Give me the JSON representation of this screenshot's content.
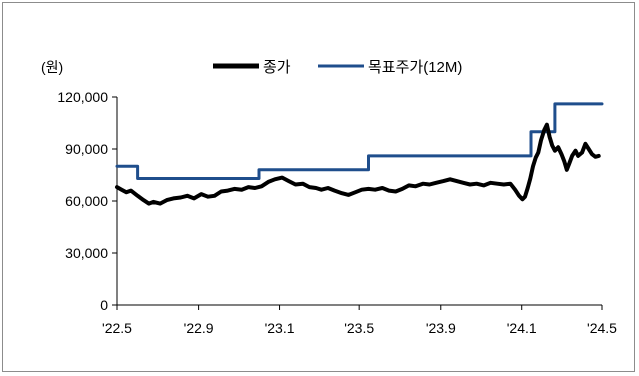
{
  "chart_data": {
    "type": "line",
    "unit_label": "(원)",
    "title": "",
    "xlabel": "",
    "ylabel": "",
    "ylim": [
      0,
      120000
    ],
    "y_ticks": [
      0,
      30000,
      60000,
      90000,
      120000
    ],
    "y_tick_labels": [
      "0",
      "30,000",
      "60,000",
      "90,000",
      "120,000"
    ],
    "x_range": [
      "2022-05-01",
      "2024-05-01"
    ],
    "x_ticks": [
      "2022-05-01",
      "2022-09-01",
      "2023-01-01",
      "2023-05-01",
      "2023-09-01",
      "2024-01-01",
      "2024-05-01"
    ],
    "x_tick_labels": [
      "'22.5",
      "'22.9",
      "'23.1",
      "'23.5",
      "'23.9",
      "'24.1",
      "'24.5"
    ],
    "grid": false,
    "legend_position": "top-center",
    "series": [
      {
        "name": "종가",
        "color": "#000000",
        "step": false,
        "points": [
          [
            "2022-05-01",
            68000
          ],
          [
            "2022-05-08",
            66500
          ],
          [
            "2022-05-15",
            65000
          ],
          [
            "2022-05-22",
            66000
          ],
          [
            "2022-06-01",
            63000
          ],
          [
            "2022-06-10",
            60500
          ],
          [
            "2022-06-18",
            58500
          ],
          [
            "2022-06-25",
            59500
          ],
          [
            "2022-07-05",
            58500
          ],
          [
            "2022-07-15",
            60500
          ],
          [
            "2022-07-25",
            61500
          ],
          [
            "2022-08-05",
            62000
          ],
          [
            "2022-08-15",
            63000
          ],
          [
            "2022-08-25",
            61500
          ],
          [
            "2022-09-05",
            64000
          ],
          [
            "2022-09-15",
            62500
          ],
          [
            "2022-09-25",
            63000
          ],
          [
            "2022-10-05",
            65500
          ],
          [
            "2022-10-15",
            66000
          ],
          [
            "2022-10-25",
            67000
          ],
          [
            "2022-11-05",
            66500
          ],
          [
            "2022-11-15",
            68000
          ],
          [
            "2022-11-25",
            67500
          ],
          [
            "2022-12-05",
            68500
          ],
          [
            "2022-12-15",
            71000
          ],
          [
            "2022-12-25",
            72500
          ],
          [
            "2023-01-05",
            73500
          ],
          [
            "2023-01-15",
            71500
          ],
          [
            "2023-01-25",
            69500
          ],
          [
            "2023-02-05",
            70000
          ],
          [
            "2023-02-15",
            68000
          ],
          [
            "2023-02-25",
            67500
          ],
          [
            "2023-03-05",
            66500
          ],
          [
            "2023-03-15",
            67500
          ],
          [
            "2023-03-25",
            66000
          ],
          [
            "2023-04-05",
            64500
          ],
          [
            "2023-04-15",
            63500
          ],
          [
            "2023-04-25",
            65000
          ],
          [
            "2023-05-05",
            66500
          ],
          [
            "2023-05-15",
            67000
          ],
          [
            "2023-05-25",
            66500
          ],
          [
            "2023-06-05",
            67500
          ],
          [
            "2023-06-15",
            66000
          ],
          [
            "2023-06-25",
            65500
          ],
          [
            "2023-07-05",
            67000
          ],
          [
            "2023-07-15",
            69000
          ],
          [
            "2023-07-25",
            68500
          ],
          [
            "2023-08-05",
            70000
          ],
          [
            "2023-08-15",
            69500
          ],
          [
            "2023-08-25",
            70500
          ],
          [
            "2023-09-05",
            71500
          ],
          [
            "2023-09-15",
            72500
          ],
          [
            "2023-09-25",
            71500
          ],
          [
            "2023-10-05",
            70500
          ],
          [
            "2023-10-15",
            69500
          ],
          [
            "2023-10-25",
            70000
          ],
          [
            "2023-11-05",
            69000
          ],
          [
            "2023-11-15",
            70500
          ],
          [
            "2023-11-25",
            70000
          ],
          [
            "2023-12-05",
            69500
          ],
          [
            "2023-12-15",
            70000
          ],
          [
            "2023-12-22",
            66500
          ],
          [
            "2023-12-28",
            63000
          ],
          [
            "2024-01-02",
            61000
          ],
          [
            "2024-01-06",
            62500
          ],
          [
            "2024-01-10",
            67500
          ],
          [
            "2024-01-14",
            73000
          ],
          [
            "2024-01-18",
            80000
          ],
          [
            "2024-01-22",
            85000
          ],
          [
            "2024-01-26",
            88000
          ],
          [
            "2024-01-30",
            95000
          ],
          [
            "2024-02-04",
            101000
          ],
          [
            "2024-02-08",
            104000
          ],
          [
            "2024-02-12",
            97000
          ],
          [
            "2024-02-16",
            92000
          ],
          [
            "2024-02-20",
            89000
          ],
          [
            "2024-02-25",
            91000
          ],
          [
            "2024-03-01",
            87000
          ],
          [
            "2024-03-05",
            83000
          ],
          [
            "2024-03-09",
            78000
          ],
          [
            "2024-03-13",
            82000
          ],
          [
            "2024-03-17",
            86000
          ],
          [
            "2024-03-22",
            89000
          ],
          [
            "2024-03-26",
            86000
          ],
          [
            "2024-04-01",
            88000
          ],
          [
            "2024-04-06",
            93000
          ],
          [
            "2024-04-11",
            90000
          ],
          [
            "2024-04-16",
            87000
          ],
          [
            "2024-04-21",
            85500
          ],
          [
            "2024-04-26",
            86000
          ]
        ]
      },
      {
        "name": "목표주가(12M)",
        "color": "#1f4e8c",
        "step": true,
        "points": [
          [
            "2022-05-01",
            80000
          ],
          [
            "2022-06-01",
            73000
          ],
          [
            "2022-12-01",
            78000
          ],
          [
            "2023-05-15",
            86000
          ],
          [
            "2024-01-15",
            100000
          ],
          [
            "2024-02-20",
            116000
          ],
          [
            "2024-05-01",
            116000
          ]
        ]
      }
    ]
  }
}
